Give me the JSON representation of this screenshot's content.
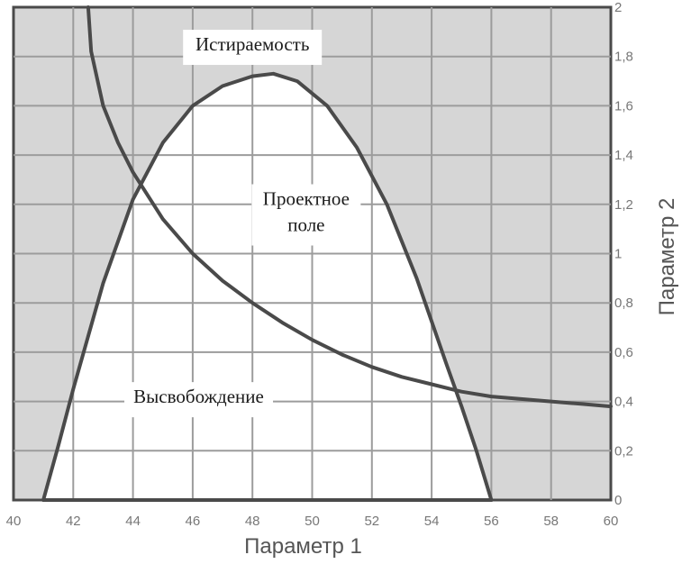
{
  "chart_data": {
    "type": "line",
    "title": "",
    "xlabel": "Параметр 1",
    "ylabel": "Параметр 2",
    "xlim": [
      40,
      60
    ],
    "ylim": [
      0,
      2
    ],
    "x_ticks": [
      "40",
      "42",
      "44",
      "46",
      "48",
      "50",
      "52",
      "54",
      "56",
      "58",
      "60"
    ],
    "y_ticks": [
      "0",
      "0,2",
      "0,4",
      "0,6",
      "0,8",
      "1",
      "1,2",
      "1,4",
      "1,6",
      "1,8",
      "2"
    ],
    "x_tick_values": [
      40,
      42,
      44,
      46,
      48,
      50,
      52,
      54,
      56,
      58,
      60
    ],
    "y_tick_values": [
      0,
      0.2,
      0.4,
      0.6,
      0.8,
      1.0,
      1.2,
      1.4,
      1.6,
      1.8,
      2.0
    ],
    "grid": true,
    "y_axis_side": "right",
    "series": [
      {
        "x": [
          42.5,
          42.6,
          43.0,
          43.5,
          44.0,
          45.0,
          46.0,
          47.0,
          48.0,
          49.0,
          50.0,
          51.0,
          52.0,
          53.0,
          54.0,
          55.0,
          56.0,
          57.0,
          58.0,
          59.0,
          60.0
        ],
        "y": [
          2.0,
          1.82,
          1.6,
          1.45,
          1.33,
          1.14,
          1.0,
          0.89,
          0.8,
          0.72,
          0.65,
          0.59,
          0.54,
          0.5,
          0.47,
          0.44,
          0.42,
          0.41,
          0.4,
          0.39,
          0.38
        ]
      },
      {
        "x": [
          41.0,
          41.5,
          42.0,
          43.0,
          44.0,
          45.0,
          46.0,
          47.0,
          48.0,
          48.7,
          49.5,
          50.5,
          51.5,
          52.5,
          53.5,
          54.5,
          55.0,
          55.5,
          56.0
        ],
        "y": [
          0.0,
          0.22,
          0.45,
          0.88,
          1.22,
          1.45,
          1.6,
          1.68,
          1.72,
          1.73,
          1.7,
          1.6,
          1.43,
          1.2,
          0.9,
          0.55,
          0.38,
          0.2,
          0.0
        ]
      },
      {
        "x": [
          41.0,
          56.0
        ],
        "y": [
          0.0,
          0.0
        ]
      }
    ],
    "annotations": [
      {
        "text": "Истираемость",
        "x": 48.0,
        "y": 1.85
      },
      {
        "text": "Проектное\nполе",
        "x": 49.8,
        "y": 1.17
      },
      {
        "text": "Высвобождение",
        "x": 46.2,
        "y": 0.42
      }
    ]
  }
}
